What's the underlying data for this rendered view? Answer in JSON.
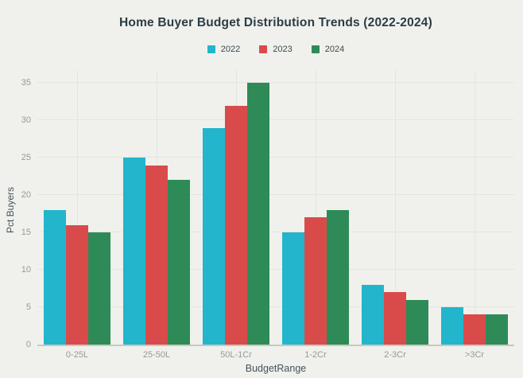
{
  "chart_data": {
    "type": "bar",
    "title": "Home Buyer Budget Distribution Trends (2022-2024)",
    "xlabel": "BudgetRange",
    "ylabel": "Pct Buyers",
    "categories": [
      "0-25L",
      "25-50L",
      "50L-1Cr",
      "1-2Cr",
      "2-3Cr",
      ">3Cr"
    ],
    "series": [
      {
        "name": "2022",
        "color": "#22B5CC",
        "values": [
          18,
          25,
          29,
          15,
          8,
          5
        ]
      },
      {
        "name": "2023",
        "color": "#D94B4B",
        "values": [
          16,
          24,
          32,
          17,
          7,
          4
        ]
      },
      {
        "name": "2024",
        "color": "#2E8B57",
        "values": [
          15,
          22,
          35,
          18,
          6,
          4
        ]
      }
    ],
    "yticks": [
      0,
      5,
      10,
      15,
      20,
      25,
      30,
      35
    ],
    "ylim": [
      0,
      36
    ],
    "grid": true,
    "legend_position": "top-center"
  },
  "colors": {
    "background": "#F0F1EC",
    "gridline": "#E4E5DE",
    "axis_line": "#C7C9C1",
    "tick_label": "#949A96",
    "axis_title": "#44535C",
    "title_text": "#2C3C45",
    "legend_text": "#3A4A52"
  }
}
